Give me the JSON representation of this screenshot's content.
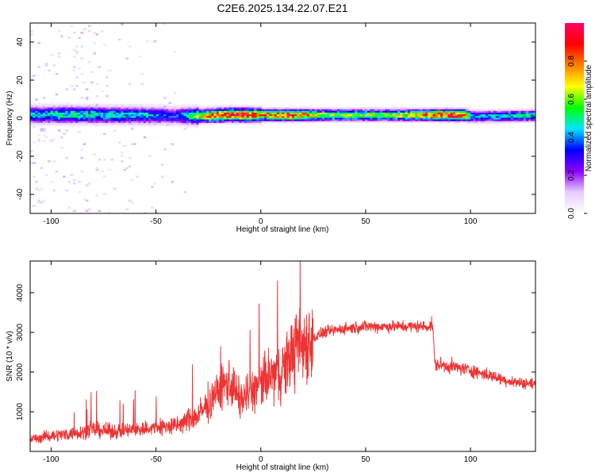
{
  "title": "C2E6.2025.134.22.07.E21",
  "chart_data": [
    {
      "type": "heatmap",
      "xlabel": "Height of straight line (km)",
      "ylabel": "Frequency (Hz)",
      "xlim": [
        -110,
        131
      ],
      "ylim": [
        -50,
        50
      ],
      "xticks": [
        "-100",
        "-50",
        "0",
        "50",
        "100"
      ],
      "yticks": [
        "40",
        "20",
        "0",
        "-20",
        "-40"
      ],
      "colorbar": {
        "label": "Normalized spectral amplitude",
        "range": [
          0.0,
          1.0
        ],
        "ticks": [
          "0.0",
          "0.2",
          "0.4",
          "0.6",
          "0.8"
        ],
        "colormap": [
          "#ffffff",
          "#e6ccff",
          "#8b00ff",
          "#0000ff",
          "#00e5ff",
          "#00ff00",
          "#ffff00",
          "#ff8000",
          "#ff0000",
          "#ff0066"
        ]
      },
      "band_center_hz": [
        {
          "x": -110,
          "y": 1.5
        },
        {
          "x": -90,
          "y": 1.5
        },
        {
          "x": -60,
          "y": 1.2
        },
        {
          "x": -30,
          "y": 0.8
        },
        {
          "x": -15,
          "y": 1.5
        },
        {
          "x": 0,
          "y": 1.3
        },
        {
          "x": 40,
          "y": 1.3
        },
        {
          "x": 80,
          "y": 1.3
        },
        {
          "x": 96,
          "y": 1.3
        },
        {
          "x": 100,
          "y": 0.5
        },
        {
          "x": 131,
          "y": 1.0
        }
      ],
      "peak_amplitude": [
        {
          "x": -110,
          "v": 0.45
        },
        {
          "x": -90,
          "v": 0.5
        },
        {
          "x": -60,
          "v": 0.45
        },
        {
          "x": -40,
          "v": 0.35
        },
        {
          "x": -25,
          "v": 0.8
        },
        {
          "x": -10,
          "v": 0.95
        },
        {
          "x": 0,
          "v": 0.8
        },
        {
          "x": 15,
          "v": 0.9
        },
        {
          "x": 30,
          "v": 0.65
        },
        {
          "x": 60,
          "v": 0.6
        },
        {
          "x": 75,
          "v": 0.75
        },
        {
          "x": 90,
          "v": 0.95
        },
        {
          "x": 96,
          "v": 0.9
        },
        {
          "x": 100,
          "v": 0.45
        },
        {
          "x": 131,
          "v": 0.5
        }
      ]
    },
    {
      "type": "line",
      "xlabel": "Height of straight line (km)",
      "ylabel": "SNR (10 * v/v)",
      "xlim": [
        -110,
        131
      ],
      "ylim": [
        0,
        4800
      ],
      "xticks": [
        "-100",
        "-50",
        "0",
        "50",
        "100"
      ],
      "yticks": [
        "4000",
        "3000",
        "2000",
        "1000"
      ],
      "series": [
        {
          "color": "#ee3333",
          "values": [
            {
              "x": -110,
              "y": 300
            },
            {
              "x": -100,
              "y": 400
            },
            {
              "x": -90,
              "y": 450
            },
            {
              "x": -80,
              "y": 550
            },
            {
              "x": -70,
              "y": 500
            },
            {
              "x": -60,
              "y": 550
            },
            {
              "x": -50,
              "y": 600
            },
            {
              "x": -40,
              "y": 650
            },
            {
              "x": -30,
              "y": 900
            },
            {
              "x": -25,
              "y": 1200
            },
            {
              "x": -20,
              "y": 1500
            },
            {
              "x": -15,
              "y": 1800
            },
            {
              "x": -10,
              "y": 1300
            },
            {
              "x": -5,
              "y": 1500
            },
            {
              "x": 0,
              "y": 1700
            },
            {
              "x": 5,
              "y": 1900
            },
            {
              "x": 10,
              "y": 2000
            },
            {
              "x": 15,
              "y": 2500
            },
            {
              "x": 20,
              "y": 2700
            },
            {
              "x": 25,
              "y": 2850
            },
            {
              "x": 30,
              "y": 3000
            },
            {
              "x": 40,
              "y": 3100
            },
            {
              "x": 50,
              "y": 3150
            },
            {
              "x": 60,
              "y": 3150
            },
            {
              "x": 70,
              "y": 3150
            },
            {
              "x": 80,
              "y": 3150
            },
            {
              "x": 82,
              "y": 3200
            },
            {
              "x": 83,
              "y": 2200
            },
            {
              "x": 90,
              "y": 2150
            },
            {
              "x": 100,
              "y": 2050
            },
            {
              "x": 110,
              "y": 1900
            },
            {
              "x": 120,
              "y": 1750
            },
            {
              "x": 131,
              "y": 1700
            }
          ]
        }
      ]
    }
  ]
}
